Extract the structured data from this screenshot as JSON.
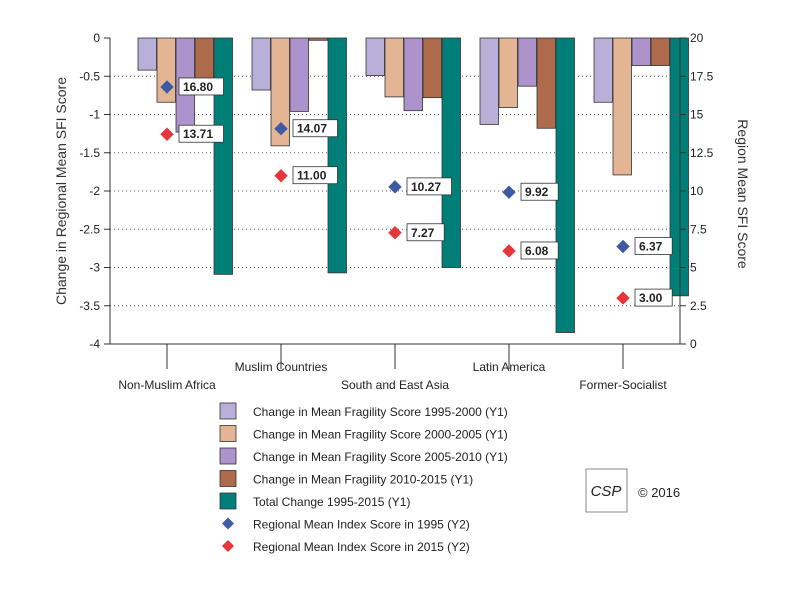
{
  "chart_data": {
    "type": "bar",
    "title": "",
    "categories": [
      "Non-Muslim Africa",
      "Muslim Countries",
      "South and East Asia",
      "Latin America",
      "Former-Socialist"
    ],
    "ylabel": "Change in Regional Mean SFI Score",
    "y2label": "Region Mean SFI Score",
    "ylim": [
      -4,
      0
    ],
    "y2lim": [
      0,
      20
    ],
    "yticks": [
      "0",
      "-0.5",
      "-1",
      "-1.5",
      "-2",
      "-2.5",
      "-3",
      "-3.5",
      "-4"
    ],
    "y2ticks": [
      "20",
      "17.5",
      "15",
      "12.5",
      "10",
      "7.5",
      "5",
      "2.5",
      "0"
    ],
    "grid": true,
    "bar_series": [
      {
        "name": "Change in Mean Fragility Score 1995-2000 (Y1)",
        "color": "#B9B0DA",
        "values": [
          -0.42,
          -0.68,
          -0.49,
          -1.13,
          -0.84
        ]
      },
      {
        "name": "Change in Mean Fragility Score 2000-2005 (Y1)",
        "color": "#E4B595",
        "values": [
          -0.84,
          -1.41,
          -0.77,
          -0.91,
          -1.79
        ]
      },
      {
        "name": "Change in Mean Fragility Score 2005-2010 (Y1)",
        "color": "#AC93CB",
        "values": [
          -1.23,
          -0.96,
          -0.95,
          -0.63,
          -0.36
        ]
      },
      {
        "name": "Change in Mean Fragility 2010-2015 (Y1)",
        "color": "#AE6B4B",
        "values": [
          -0.6,
          -0.03,
          -0.78,
          -1.18,
          -0.36
        ]
      },
      {
        "name": "Total Change 1995-2015 (Y1)",
        "color": "#007F79",
        "values": [
          -3.09,
          -3.07,
          -3.0,
          -3.85,
          -3.37
        ]
      }
    ],
    "point_series": [
      {
        "name": "Regional Mean Index Score in 1995 (Y2)",
        "color": "#3D5AA3",
        "values": [
          16.8,
          14.07,
          10.27,
          9.92,
          6.37
        ],
        "labels": [
          "16.80",
          "14.07",
          "10.27",
          "9.92",
          "6.37"
        ]
      },
      {
        "name": "Regional Mean Index Score in 2015 (Y2)",
        "color": "#E8343B",
        "values": [
          13.71,
          11.0,
          7.27,
          6.08,
          3.0
        ],
        "labels": [
          "13.71",
          "11.00",
          "7.27",
          "6.08",
          "3.00"
        ]
      }
    ],
    "logo_text": "CSP",
    "copyright": "© 2016"
  }
}
